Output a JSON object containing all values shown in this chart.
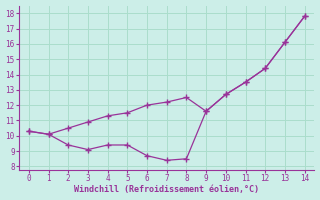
{
  "x": [
    0,
    1,
    2,
    3,
    4,
    5,
    6,
    7,
    8,
    9,
    10,
    11,
    12,
    13,
    14
  ],
  "temp_line": [
    10.3,
    10.1,
    10.5,
    10.9,
    11.3,
    11.5,
    12.0,
    12.2,
    12.5,
    11.6,
    12.7,
    13.5,
    14.4,
    16.1,
    17.8
  ],
  "windchill_line": [
    10.3,
    10.1,
    9.4,
    9.1,
    9.4,
    9.4,
    8.7,
    8.4,
    8.5,
    11.6,
    12.7,
    13.5,
    14.4,
    16.1,
    17.8
  ],
  "line_color": "#993399",
  "bg_color": "#cceee8",
  "grid_color": "#aaddcc",
  "xlabel": "Windchill (Refroidissement éolien,°C)",
  "xlabel_color": "#993399",
  "tick_color": "#993399",
  "ylabel_ticks": [
    8,
    9,
    10,
    11,
    12,
    13,
    14,
    15,
    16,
    17,
    18
  ],
  "xlabel_ticks": [
    0,
    1,
    2,
    3,
    4,
    5,
    6,
    7,
    8,
    9,
    10,
    11,
    12,
    13,
    14
  ],
  "ylim": [
    7.8,
    18.5
  ],
  "xlim": [
    -0.5,
    14.5
  ]
}
